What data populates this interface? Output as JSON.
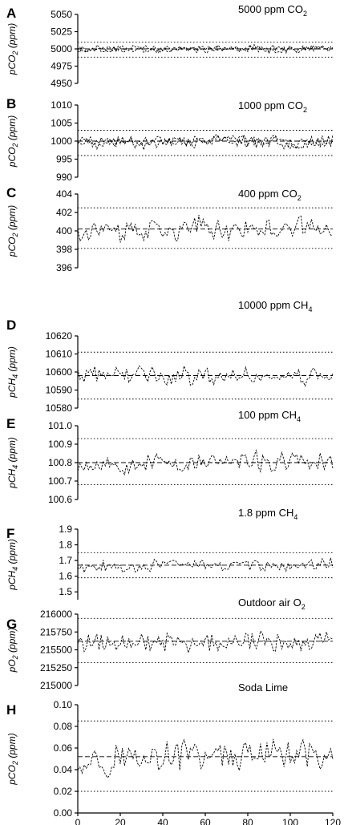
{
  "chart_data": [
    {
      "letter": "A",
      "type": "line",
      "condition": {
        "pre": "5000 ppm  CO",
        "sub": "2"
      },
      "ylabel": {
        "pre": "pCO",
        "sub": "2",
        "post": " (ppm)"
      },
      "yticks": [
        "4950",
        "4975",
        "5000",
        "5025",
        "5050"
      ],
      "ylim": [
        4950,
        5050
      ],
      "mean": 5000,
      "limits": [
        4988,
        5010
      ],
      "base": 5000,
      "amp": 4,
      "seed": 11,
      "series_count": 2
    },
    {
      "letter": "B",
      "type": "line",
      "condition": {
        "pre": "1000 ppm  CO",
        "sub": "2"
      },
      "ylabel": {
        "pre": "pCO",
        "sub": "2",
        "post": " (ppm)"
      },
      "yticks": [
        "990",
        "995",
        "1000",
        "1005",
        "1010"
      ],
      "ylim": [
        990,
        1010
      ],
      "mean": 1000,
      "limits": [
        996,
        1003
      ],
      "base": 1000,
      "amp": 1.3,
      "seed": 23,
      "series_count": 2
    },
    {
      "letter": "C",
      "type": "line",
      "condition": {
        "pre": "400 ppm  CO",
        "sub": "2"
      },
      "ylabel": {
        "pre": "pCO",
        "sub": "2",
        "post": " (ppm)"
      },
      "yticks": [
        "396",
        "398",
        "400",
        "402",
        "404"
      ],
      "ylim": [
        396,
        404
      ],
      "mean": 400.2,
      "limits": [
        398.1,
        402.5
      ],
      "base": 400.2,
      "amp": 0.9,
      "seed": 37,
      "series_count": 1
    },
    {
      "letter": "D",
      "type": "line",
      "condition": {
        "pre": "10000 ppm  CH",
        "sub": "4"
      },
      "ylabel": {
        "pre": "pCH",
        "sub": "4",
        "post": " (ppm)"
      },
      "yticks": [
        "10580",
        "10590",
        "10600",
        "10610",
        "10620"
      ],
      "ylim": [
        10580,
        10620
      ],
      "mean": 10598,
      "limits": [
        10585,
        10611
      ],
      "base": 10598,
      "amp": 4,
      "seed": 41,
      "series_count": 1
    },
    {
      "letter": "E",
      "type": "line",
      "condition": {
        "pre": "100 ppm  CH",
        "sub": "4"
      },
      "ylabel": {
        "pre": "pCH",
        "sub": "4",
        "post": " (ppm)"
      },
      "yticks": [
        "100.6",
        "100.7",
        "100.8",
        "100.9",
        "101.0"
      ],
      "ylim": [
        100.6,
        101.0
      ],
      "mean": 100.8,
      "limits": [
        100.68,
        100.93
      ],
      "base": 100.8,
      "amp": 0.04,
      "seed": 53,
      "series_count": 1
    },
    {
      "letter": "F",
      "type": "line",
      "condition": {
        "pre": "1.8 ppm  CH",
        "sub": "4"
      },
      "ylabel": {
        "pre": "pCH",
        "sub": "4",
        "post": " (ppm)"
      },
      "yticks": [
        "1.5",
        "1.6",
        "1.7",
        "1.8",
        "1.9"
      ],
      "ylim": [
        1.45,
        1.9
      ],
      "mean": 1.67,
      "limits": [
        1.59,
        1.75
      ],
      "base": 1.67,
      "amp": 0.03,
      "seed": 67,
      "series_count": 1
    },
    {
      "letter": "G",
      "type": "line",
      "condition": {
        "pre": "Outdoor air O",
        "sub": "2"
      },
      "ylabel": {
        "pre": "pO",
        "sub": "2",
        "post": " (ppm)"
      },
      "yticks": [
        "215000",
        "215250",
        "215500",
        "215750",
        "216000"
      ],
      "ylim": [
        215000,
        216000
      ],
      "mean": 215620,
      "limits": [
        215320,
        215940
      ],
      "base": 215620,
      "amp": 110,
      "seed": 79,
      "series_count": 1
    },
    {
      "letter": "H",
      "type": "line",
      "condition": {
        "pre": "Soda Lime",
        "sub": ""
      },
      "ylabel": {
        "pre": "pCO",
        "sub": "2",
        "post": " (ppm)"
      },
      "yticks": [
        "0.00",
        "0.02",
        "0.04",
        "0.06",
        "0.08",
        "0.10"
      ],
      "ylim": [
        0,
        0.1
      ],
      "mean": 0.052,
      "limits": [
        0.02,
        0.085
      ],
      "base": 0.052,
      "amp": 0.011,
      "seed": 97,
      "series_count": 1
    }
  ],
  "xaxis": {
    "ticks": [
      "0",
      "20",
      "40",
      "60",
      "80",
      "100",
      "120"
    ],
    "xlim": [
      0,
      120
    ]
  }
}
